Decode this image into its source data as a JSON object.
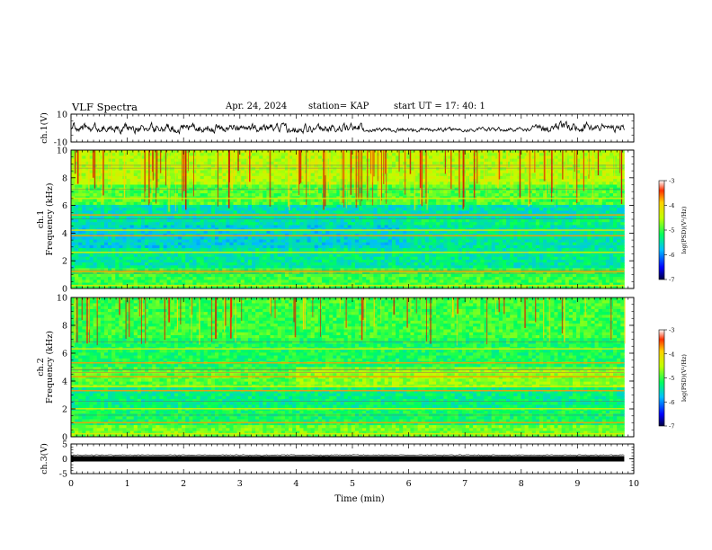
{
  "header": {
    "title": "VLF Spectra",
    "date": "Apr. 24, 2024",
    "station": "station= KAP",
    "start": "start  UT  =    17: 40: 1"
  },
  "chart_data": [
    {
      "type": "line",
      "panel": "ch1-waveform",
      "ylabel": "ch.1(V)",
      "ylim": [
        -10,
        10
      ],
      "yticks": [
        "10",
        "-10"
      ],
      "xlim": [
        0,
        10
      ],
      "data_extent_x": [
        0,
        9.83
      ],
      "description_values": {
        "typical_amplitude_V": [
          -3,
          4
        ]
      }
    },
    {
      "type": "heatmap",
      "panel": "ch1-spectrogram",
      "ylabel": "ch.1\nFrequency (kHz)",
      "ylim": [
        0,
        10
      ],
      "yticks": [
        "0",
        "2",
        "4",
        "6",
        "8",
        "10"
      ],
      "xlim": [
        0,
        10
      ],
      "data_extent_x": [
        0,
        9.83
      ],
      "colorbar": {
        "label": "log(PSD)(V²/Hz)",
        "range": [
          -7,
          -3
        ],
        "ticks": [
          "-3",
          "-4",
          "-5",
          "-6",
          "-7"
        ]
      },
      "bands_kHz": [
        0.2,
        1.2,
        2.6,
        3.8,
        4.2,
        5.3,
        6.5
      ]
    },
    {
      "type": "heatmap",
      "panel": "ch2-spectrogram",
      "ylabel": "ch.2\nFrequency (kHz)",
      "ylim": [
        0,
        10
      ],
      "yticks": [
        "0",
        "2",
        "4",
        "6",
        "8",
        "10"
      ],
      "xlim": [
        0,
        10
      ],
      "data_extent_x": [
        0,
        9.83
      ],
      "colorbar": {
        "label": "log(PSD)(V²/Hz)",
        "range": [
          -7,
          -3
        ],
        "ticks": [
          "-3",
          "-4",
          "-5",
          "-6",
          "-7"
        ]
      },
      "bands_kHz": [
        0.2,
        1.0,
        2.0,
        3.3,
        3.6,
        4.3,
        4.6,
        5.3,
        6.3
      ]
    },
    {
      "type": "line",
      "panel": "ch3-waveform",
      "ylabel": "ch.3(V)",
      "ylim": [
        -5,
        5
      ],
      "yticks": [
        "5",
        "0",
        "-5"
      ],
      "xlim": [
        0,
        10
      ],
      "data_extent_x": [
        0,
        9.83
      ],
      "xlabel": "Time  (min)",
      "xticks": [
        "0",
        "1",
        "2",
        "3",
        "4",
        "5",
        "6",
        "7",
        "8",
        "9",
        "10"
      ],
      "level_V": 0
    }
  ]
}
